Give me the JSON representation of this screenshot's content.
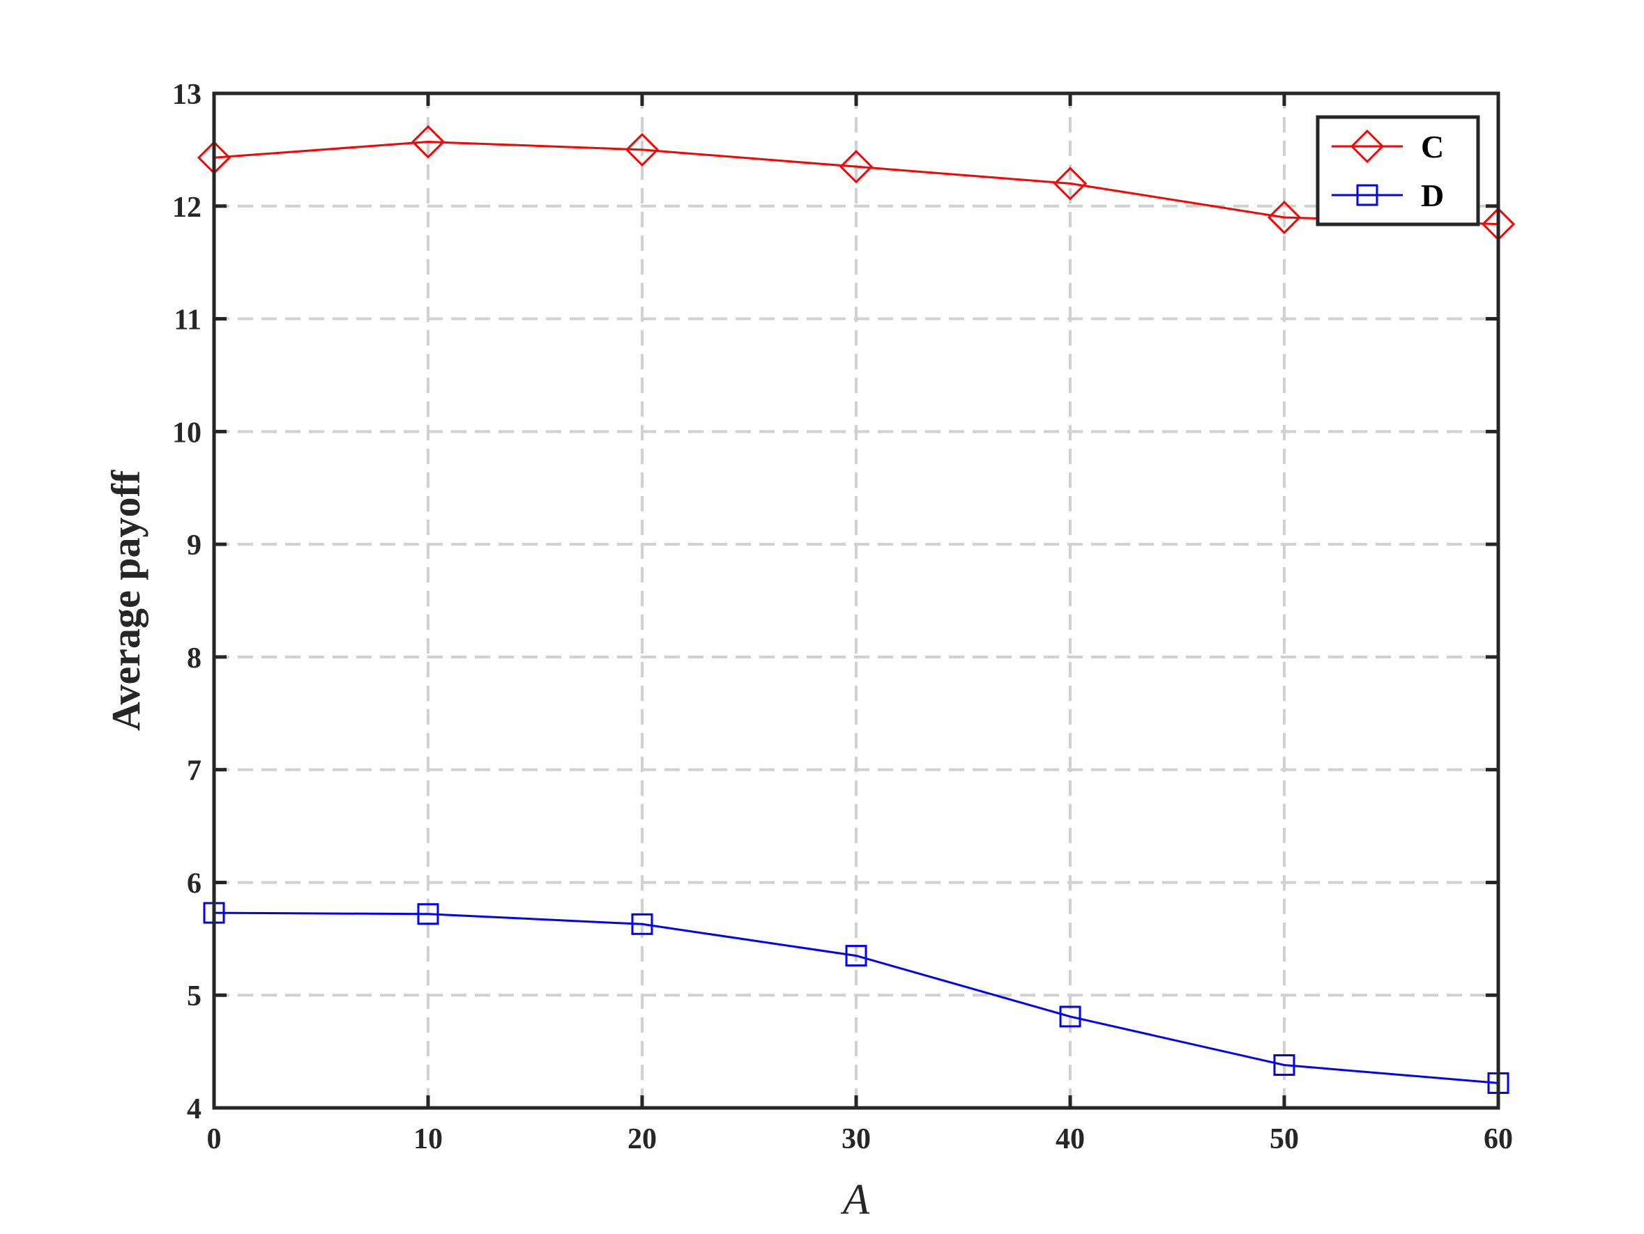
{
  "chart_data": {
    "type": "line",
    "title": "",
    "xlabel": "A",
    "ylabel": "Average payoff",
    "x": [
      0,
      10,
      20,
      30,
      40,
      50,
      60
    ],
    "xlim": [
      0,
      60
    ],
    "ylim": [
      4,
      13
    ],
    "xticks": [
      0,
      10,
      20,
      30,
      40,
      50,
      60
    ],
    "yticks": [
      4,
      5,
      6,
      7,
      8,
      9,
      10,
      11,
      12,
      13
    ],
    "grid": true,
    "legend_position": "top-right",
    "series": [
      {
        "name": "C",
        "values": [
          12.43,
          12.57,
          12.5,
          12.35,
          12.2,
          11.9,
          11.84
        ],
        "color": "#ff0000",
        "marker": "diamond"
      },
      {
        "name": "D",
        "values": [
          5.73,
          5.72,
          5.63,
          5.35,
          4.81,
          4.38,
          4.22
        ],
        "color": "#0000ff",
        "marker": "square"
      }
    ]
  }
}
